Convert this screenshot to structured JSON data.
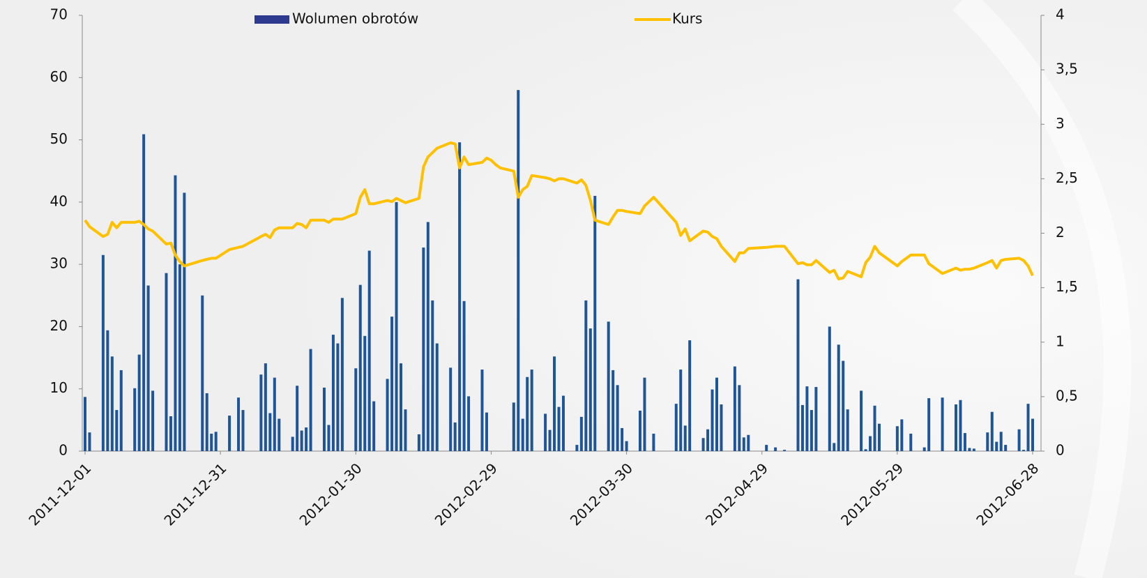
{
  "chart_data": {
    "type": "bar-line",
    "x": [
      "2011-12-01",
      "2011-12-02",
      "2011-12-05",
      "2011-12-06",
      "2011-12-07",
      "2011-12-08",
      "2011-12-09",
      "2011-12-12",
      "2011-12-13",
      "2011-12-14",
      "2011-12-15",
      "2011-12-16",
      "2011-12-19",
      "2011-12-20",
      "2011-12-21",
      "2011-12-22",
      "2011-12-23",
      "2011-12-27",
      "2011-12-28",
      "2011-12-29",
      "2011-12-30",
      "2012-01-02",
      "2012-01-04",
      "2012-01-05",
      "2012-01-09",
      "2012-01-10",
      "2012-01-11",
      "2012-01-12",
      "2012-01-13",
      "2012-01-16",
      "2012-01-17",
      "2012-01-18",
      "2012-01-19",
      "2012-01-20",
      "2012-01-23",
      "2012-01-24",
      "2012-01-25",
      "2012-01-26",
      "2012-01-27",
      "2012-01-30",
      "2012-01-31",
      "2012-02-01",
      "2012-02-02",
      "2012-02-03",
      "2012-02-06",
      "2012-02-07",
      "2012-02-08",
      "2012-02-09",
      "2012-02-10",
      "2012-02-13",
      "2012-02-14",
      "2012-02-15",
      "2012-02-16",
      "2012-02-17",
      "2012-02-20",
      "2012-02-21",
      "2012-02-22",
      "2012-02-23",
      "2012-02-24",
      "2012-02-27",
      "2012-02-28",
      "2012-02-29",
      "2012-03-01",
      "2012-03-02",
      "2012-03-05",
      "2012-03-06",
      "2012-03-07",
      "2012-03-08",
      "2012-03-09",
      "2012-03-12",
      "2012-03-13",
      "2012-03-14",
      "2012-03-15",
      "2012-03-16",
      "2012-03-19",
      "2012-03-20",
      "2012-03-21",
      "2012-03-22",
      "2012-03-23",
      "2012-03-26",
      "2012-03-27",
      "2012-03-28",
      "2012-03-29",
      "2012-03-30",
      "2012-04-02",
      "2012-04-03",
      "2012-04-05",
      "2012-04-10",
      "2012-04-11",
      "2012-04-12",
      "2012-04-13",
      "2012-04-16",
      "2012-04-17",
      "2012-04-18",
      "2012-04-19",
      "2012-04-20",
      "2012-04-23",
      "2012-04-24",
      "2012-04-25",
      "2012-04-26",
      "2012-04-30",
      "2012-05-02",
      "2012-05-04",
      "2012-05-07",
      "2012-05-08",
      "2012-05-09",
      "2012-05-10",
      "2012-05-11",
      "2012-05-14",
      "2012-05-15",
      "2012-05-16",
      "2012-05-17",
      "2012-05-18",
      "2012-05-21",
      "2012-05-22",
      "2012-05-23",
      "2012-05-24",
      "2012-05-25",
      "2012-05-29",
      "2012-05-30",
      "2012-06-01",
      "2012-06-04",
      "2012-06-05",
      "2012-06-08",
      "2012-06-11",
      "2012-06-12",
      "2012-06-13",
      "2012-06-14",
      "2012-06-15",
      "2012-06-18",
      "2012-06-19",
      "2012-06-20",
      "2012-06-21",
      "2012-06-22",
      "2012-06-25",
      "2012-06-26",
      "2012-06-27",
      "2012-06-28"
    ],
    "series": [
      {
        "name": "Wolumen obrotów",
        "kind": "bar",
        "color": "#1f5597",
        "legend_color": "#2e3a8f",
        "axis": "y",
        "values": [
          8.7,
          3.0,
          31.5,
          19.4,
          15.2,
          6.6,
          13.0,
          10.1,
          15.5,
          50.9,
          26.6,
          9.7,
          28.6,
          5.6,
          44.3,
          30.0,
          41.5,
          25.0,
          9.3,
          2.8,
          3.1,
          5.7,
          8.6,
          6.6,
          12.3,
          14.1,
          6.1,
          11.8,
          5.2,
          2.3,
          10.5,
          3.3,
          3.8,
          16.4,
          10.2,
          4.2,
          18.7,
          17.3,
          24.6,
          13.3,
          26.7,
          18.5,
          32.2,
          8.0,
          11.6,
          21.6,
          40.0,
          14.1,
          6.7,
          2.7,
          32.7,
          36.8,
          24.2,
          17.3,
          13.4,
          4.6,
          49.6,
          24.1,
          8.8,
          13.1,
          6.2,
          0,
          0,
          0,
          7.8,
          58.0,
          5.2,
          11.9,
          13.1,
          6.0,
          3.4,
          15.2,
          7.1,
          8.9,
          1.0,
          5.5,
          24.2,
          19.7,
          41.0,
          20.8,
          13.0,
          10.6,
          3.7,
          1.6,
          6.5,
          11.8,
          2.8,
          7.6,
          13.1,
          4.1,
          17.8,
          2.1,
          3.5,
          9.9,
          11.8,
          7.5,
          13.6,
          10.6,
          2.2,
          2.6,
          1.0,
          0.6,
          0.2,
          27.6,
          7.4,
          10.4,
          6.6,
          10.3,
          20.0,
          1.3,
          17.1,
          14.5,
          6.7,
          9.7,
          0.3,
          2.4,
          7.3,
          4.4,
          4.0,
          5.1,
          2.8,
          0.6,
          8.5,
          8.6,
          7.5,
          8.2,
          2.9,
          0.5,
          0.4,
          3.0,
          6.3,
          1.5,
          3.1,
          1.0,
          3.5,
          0.2,
          7.6,
          5.2
        ]
      },
      {
        "name": "Kurs",
        "kind": "line",
        "color": "#ffc000",
        "axis": "y2",
        "values": [
          2.12,
          2.06,
          1.97,
          1.99,
          2.1,
          2.05,
          2.1,
          2.1,
          2.11,
          2.08,
          2.04,
          2.02,
          1.9,
          1.91,
          1.8,
          1.74,
          1.7,
          1.75,
          1.76,
          1.77,
          1.77,
          1.85,
          1.87,
          1.88,
          1.97,
          1.99,
          1.96,
          2.03,
          2.05,
          2.05,
          2.09,
          2.08,
          2.05,
          2.12,
          2.12,
          2.1,
          2.13,
          2.13,
          2.13,
          2.18,
          2.33,
          2.4,
          2.27,
          2.27,
          2.3,
          2.29,
          2.32,
          2.3,
          2.28,
          2.32,
          2.61,
          2.7,
          2.74,
          2.78,
          2.83,
          2.82,
          2.6,
          2.7,
          2.63,
          2.65,
          2.69,
          2.67,
          2.63,
          2.6,
          2.57,
          2.33,
          2.4,
          2.43,
          2.53,
          2.51,
          2.5,
          2.48,
          2.5,
          2.5,
          2.46,
          2.49,
          2.44,
          2.3,
          2.12,
          2.08,
          2.15,
          2.21,
          2.21,
          2.2,
          2.18,
          2.25,
          2.33,
          2.1,
          1.98,
          2.04,
          1.93,
          2.02,
          2.01,
          1.97,
          1.95,
          1.88,
          1.74,
          1.82,
          1.82,
          1.86,
          1.87,
          1.88,
          1.88,
          1.72,
          1.73,
          1.71,
          1.71,
          1.75,
          1.64,
          1.66,
          1.58,
          1.59,
          1.65,
          1.6,
          1.73,
          1.78,
          1.88,
          1.82,
          1.7,
          1.74,
          1.8,
          1.8,
          1.72,
          1.63,
          1.68,
          1.66,
          1.67,
          1.67,
          1.68,
          1.73,
          1.75,
          1.68,
          1.75,
          1.76,
          1.77,
          1.75,
          1.7,
          1.61
        ]
      }
    ],
    "xlim": [
      "2011-12-01",
      "2012-06-28"
    ],
    "xticks": [
      "2011-12-01",
      "2011-12-31",
      "2012-01-30",
      "2012-02-29",
      "2012-03-30",
      "2012-04-29",
      "2012-05-29",
      "2012-06-28"
    ],
    "ylim": [
      0,
      70
    ],
    "yticks": [
      0,
      10,
      20,
      30,
      40,
      50,
      60,
      70
    ],
    "y2lim": [
      0,
      4
    ],
    "y2ticks": [
      0,
      {
        "value": 0.5,
        "label": "0,5"
      },
      1,
      {
        "value": 1.5,
        "label": "1,5"
      },
      2,
      {
        "value": 2.5,
        "label": "2,5"
      },
      3,
      {
        "value": 3.5,
        "label": "3,5"
      },
      4
    ],
    "grid": false,
    "legend": "top"
  }
}
